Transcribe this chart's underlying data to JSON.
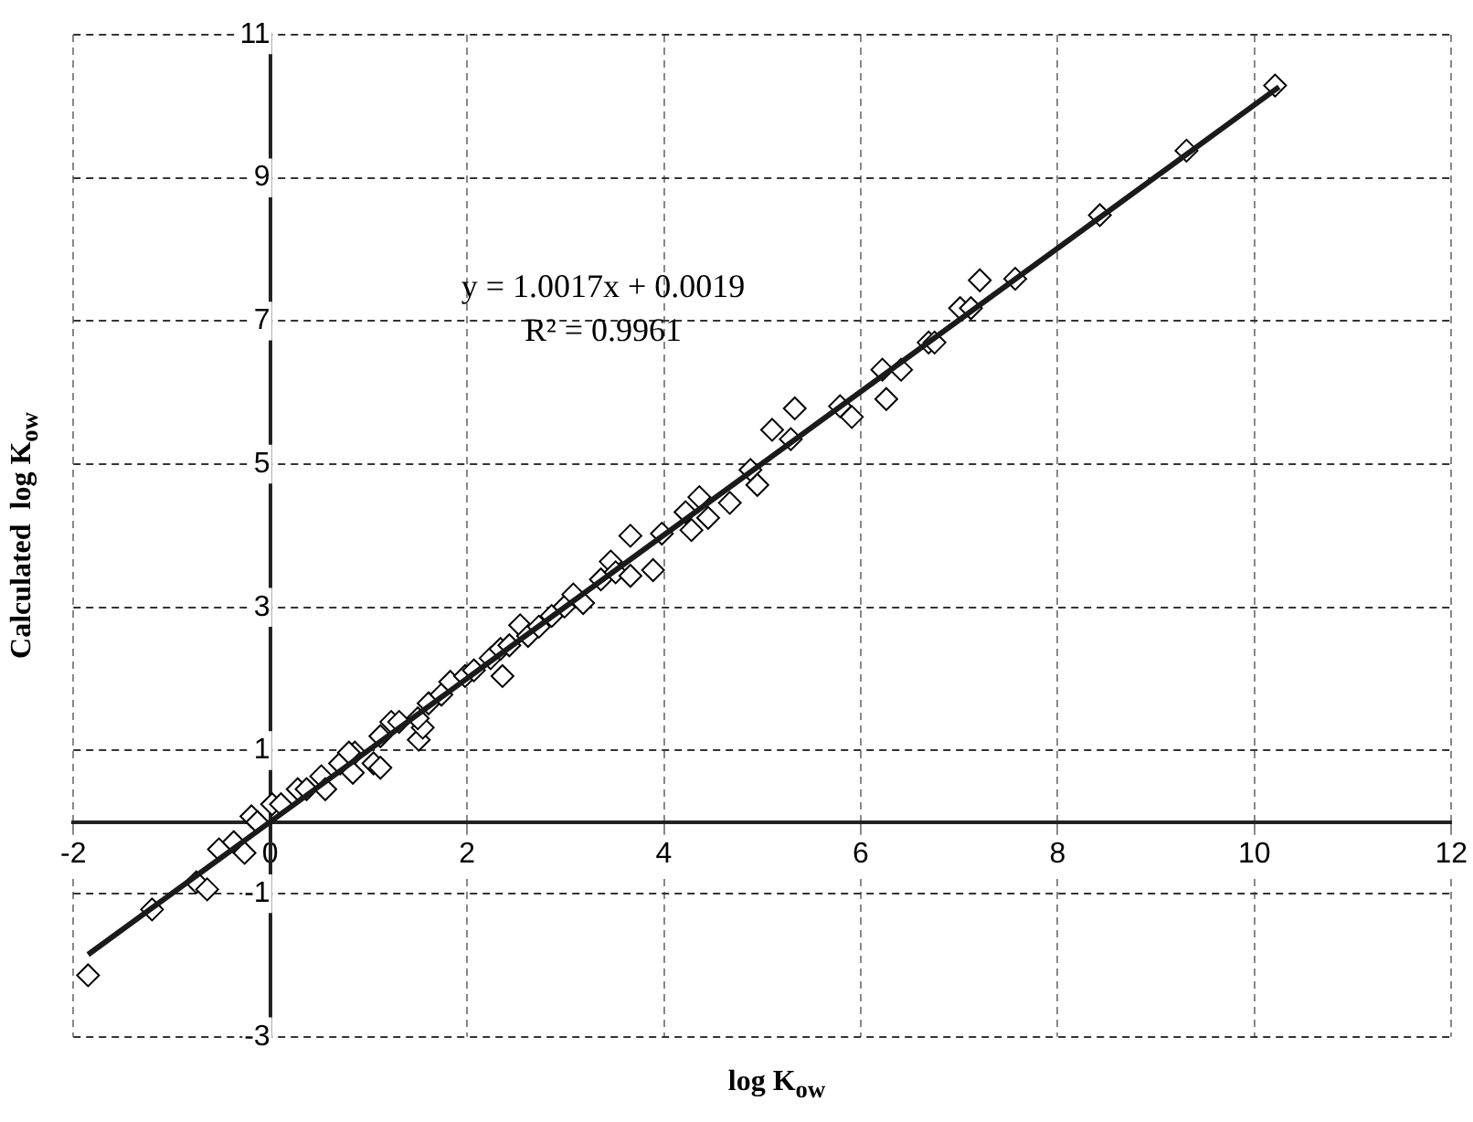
{
  "chart_data": {
    "type": "scatter",
    "xlabel": "log K$_{ow}$",
    "ylabel": "Calculated  log K$_{ow}$",
    "annotations": [
      "y = 1.0017x + 0.0019",
      "R² = 0.9961"
    ],
    "xlim": [
      -2,
      12
    ],
    "ylim": [
      -3,
      11
    ],
    "xticks": [
      -2,
      0,
      2,
      4,
      6,
      8,
      10,
      12
    ],
    "yticks": [
      -3,
      -1,
      1,
      3,
      5,
      7,
      9,
      11
    ],
    "grid": true,
    "legend": false,
    "marker": "diamond",
    "series": [
      {
        "color": "#000000",
        "x": [
          -1.85,
          -1.2,
          -0.75,
          -0.64,
          -0.52,
          -0.37,
          -0.26,
          -0.19,
          -0.13,
          0.02,
          0.11,
          0.28,
          0.37,
          0.52,
          0.56,
          0.71,
          0.84,
          0.86,
          1.05,
          1.12,
          1.23,
          1.51,
          1.55,
          1.5,
          0.8,
          1.12,
          1.31,
          1.61,
          1.74,
          1.83,
          1.98,
          2.07,
          2.24,
          2.36,
          2.34,
          2.43,
          2.54,
          2.62,
          2.73,
          2.86,
          2.99,
          3.08,
          3.18,
          3.36,
          3.46,
          3.51,
          3.66,
          3.66,
          3.89,
          3.98,
          4.22,
          4.28,
          4.36,
          4.45,
          4.67,
          4.88,
          4.95,
          5.1,
          5.29,
          5.33,
          5.79,
          5.91,
          6.22,
          6.26,
          6.41,
          6.69,
          6.75,
          7.01,
          7.12,
          7.21,
          7.57,
          8.43,
          9.31,
          10.21
        ],
        "values": [
          -2.14,
          -1.22,
          -0.84,
          -0.94,
          -0.38,
          -0.28,
          -0.43,
          0.08,
          0.0,
          0.25,
          0.25,
          0.46,
          0.46,
          0.64,
          0.46,
          0.82,
          0.69,
          0.97,
          0.82,
          1.2,
          1.4,
          1.15,
          1.32,
          1.45,
          0.97,
          0.76,
          1.4,
          1.66,
          1.78,
          1.96,
          2.04,
          2.12,
          2.29,
          2.04,
          2.42,
          2.47,
          2.75,
          2.6,
          2.73,
          2.88,
          3.01,
          3.18,
          3.06,
          3.39,
          3.64,
          3.49,
          4.0,
          3.44,
          3.52,
          4.03,
          4.33,
          4.08,
          4.54,
          4.25,
          4.46,
          4.92,
          4.71,
          5.48,
          5.35,
          5.78,
          5.81,
          5.66,
          6.32,
          5.91,
          6.32,
          6.7,
          6.7,
          7.18,
          7.18,
          7.57,
          7.59,
          8.48,
          9.38,
          10.29
        ]
      },
      {
        "type": "line",
        "color": "#1a1a1a",
        "x": [
          -1.85,
          10.25
        ],
        "values": [
          -1.85,
          10.27
        ],
        "marker": "none"
      }
    ]
  }
}
